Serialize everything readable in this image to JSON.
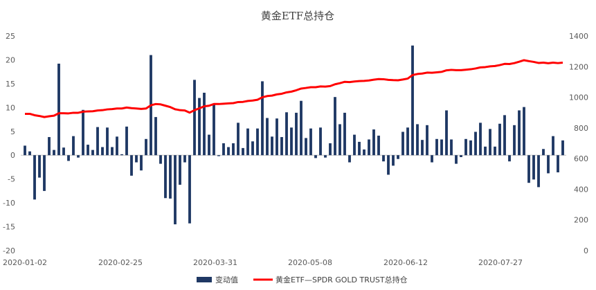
{
  "chart_data": {
    "type": "bar+line",
    "title": "黄金ETF总持仓",
    "x_tick_labels": [
      "2020-01-02",
      "2020-02-25",
      "2020-03-31",
      "2020-05-08",
      "2020-06-12",
      "2020-07-27"
    ],
    "left_axis": {
      "ylim": [
        -20,
        25
      ],
      "ticks": [
        -20,
        -15,
        -10,
        -5,
        0,
        5,
        10,
        15,
        20,
        25
      ]
    },
    "right_axis": {
      "ylim": [
        0,
        1400
      ],
      "ticks": [
        0,
        200,
        400,
        600,
        800,
        1000,
        1200,
        1400
      ]
    },
    "legend_position": "bottom",
    "series": [
      {
        "name": "变动值",
        "type": "bar",
        "axis": "left",
        "color": "#1f3864",
        "values": [
          2.0,
          0.8,
          -9.3,
          -4.7,
          -7.5,
          3.8,
          1.1,
          19.2,
          1.6,
          -1.2,
          4.0,
          -0.5,
          9.5,
          2.2,
          1.1,
          5.9,
          1.7,
          5.8,
          1.7,
          3.9,
          0.2,
          6.0,
          -4.3,
          -1.5,
          -3.2,
          3.4,
          21.0,
          8.0,
          -1.8,
          -9.0,
          -9.1,
          -14.5,
          -6.2,
          -1.5,
          -14.3,
          15.8,
          12.0,
          13.1,
          4.3,
          10.8,
          -0.2,
          2.5,
          1.7,
          2.5,
          6.8,
          1.5,
          5.6,
          2.9,
          5.6,
          15.5,
          7.8,
          3.9,
          7.7,
          3.8,
          9.0,
          5.8,
          8.9,
          11.4,
          3.6,
          5.6,
          -0.6,
          5.8,
          -0.5,
          2.5,
          12.2,
          6.5,
          8.9,
          -1.5,
          4.3,
          2.8,
          1.2,
          3.3,
          5.4,
          4.1,
          -1.3,
          -4.1,
          -2.2,
          -0.8,
          4.9,
          5.8,
          23.0,
          6.5,
          3.2,
          6.3,
          -1.5,
          3.4,
          3.3,
          9.4,
          3.3,
          -1.8,
          -0.4,
          3.4,
          3.1,
          4.9,
          6.8,
          1.8,
          5.5,
          1.8,
          6.6,
          8.4,
          -1.3,
          6.3,
          9.4,
          10.1,
          -5.8,
          -5.1,
          -6.7,
          1.3,
          -3.8,
          4.0,
          -3.6,
          3.1
        ]
      },
      {
        "name": "黄金ETF—SPDR GOLD TRUST总持仓",
        "type": "line",
        "axis": "right",
        "color": "#ff0000",
        "values": [
          892,
          892,
          883,
          878,
          871,
          876,
          880,
          896,
          896,
          895,
          899,
          899,
          906,
          908,
          909,
          914,
          916,
          921,
          923,
          927,
          927,
          933,
          929,
          927,
          924,
          927,
          948,
          956,
          954,
          945,
          936,
          922,
          916,
          914,
          900,
          916,
          928,
          941,
          945,
          956,
          956,
          958,
          960,
          962,
          969,
          970,
          976,
          979,
          984,
          1000,
          1008,
          1011,
          1019,
          1023,
          1032,
          1037,
          1046,
          1057,
          1061,
          1066,
          1066,
          1071,
          1070,
          1073,
          1085,
          1092,
          1101,
          1099,
          1103,
          1106,
          1107,
          1110,
          1115,
          1119,
          1118,
          1114,
          1112,
          1111,
          1116,
          1122,
          1145,
          1152,
          1155,
          1161,
          1160,
          1163,
          1166,
          1176,
          1179,
          1177,
          1177,
          1180,
          1183,
          1188,
          1195,
          1197,
          1202,
          1204,
          1210,
          1218,
          1217,
          1223,
          1232,
          1242,
          1236,
          1231,
          1224,
          1226,
          1222,
          1226,
          1223,
          1226
        ]
      }
    ]
  }
}
